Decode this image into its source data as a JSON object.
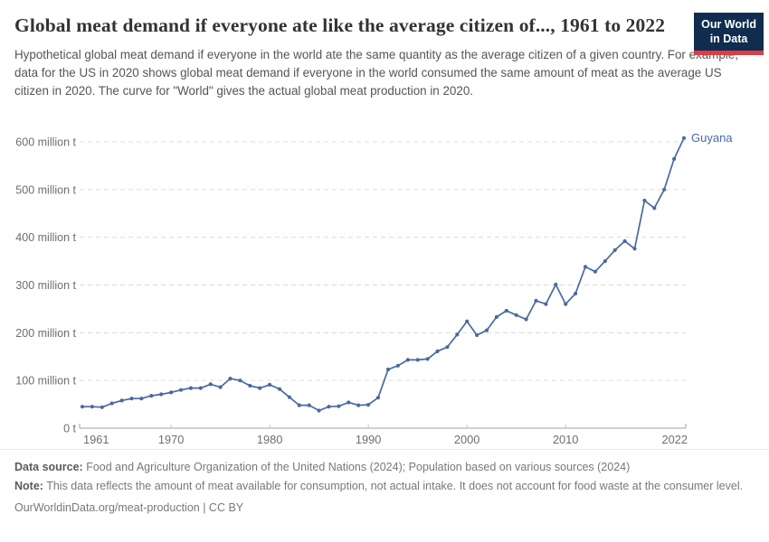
{
  "header": {
    "title": "Global meat demand if everyone ate like the average citizen of..., 1961 to 2022",
    "subtitle": "Hypothetical global meat demand if everyone in the world ate the same quantity as the average citizen of a given country. For example, data for the US in 2020 shows global meat demand if everyone in the world consumed the same amount of meat as the average US citizen in 2020. The curve for \"World\" gives the actual global meat production in 2020.",
    "logo": {
      "line1": "Our World",
      "line2": "in Data"
    }
  },
  "colors": {
    "logo_navy": "#102d4f",
    "logo_red": "#dc3d43",
    "line": "#4a69a2",
    "grid": "#dcdcdc",
    "axis": "#a1a1a1",
    "tick": "#c4c4c4",
    "text_muted": "#6e6e6e"
  },
  "chart_data": {
    "type": "line",
    "title": "Global meat demand if everyone ate like the average citizen of..., 1961 to 2022",
    "xlabel": "",
    "ylabel": "",
    "unit": "million t",
    "xlim": [
      1961,
      2022
    ],
    "ylim": [
      0,
      620
    ],
    "grid": "horizontal dashed",
    "legend_position": "end-of-line label",
    "xticks": [
      1961,
      1970,
      1980,
      1990,
      2000,
      2010,
      2022
    ],
    "yticks": [
      {
        "value": 0,
        "label": "0 t"
      },
      {
        "value": 100,
        "label": "100 million t"
      },
      {
        "value": 200,
        "label": "200 million t"
      },
      {
        "value": 300,
        "label": "300 million t"
      },
      {
        "value": 400,
        "label": "400 million t"
      },
      {
        "value": 500,
        "label": "500 million t"
      },
      {
        "value": 600,
        "label": "600 million t"
      }
    ],
    "x": [
      1961,
      1962,
      1963,
      1964,
      1965,
      1966,
      1967,
      1968,
      1969,
      1970,
      1971,
      1972,
      1973,
      1974,
      1975,
      1976,
      1977,
      1978,
      1979,
      1980,
      1981,
      1982,
      1983,
      1984,
      1985,
      1986,
      1987,
      1988,
      1989,
      1990,
      1991,
      1992,
      1993,
      1994,
      1995,
      1996,
      1997,
      1998,
      1999,
      2000,
      2001,
      2002,
      2003,
      2004,
      2005,
      2006,
      2007,
      2008,
      2009,
      2010,
      2011,
      2012,
      2013,
      2014,
      2015,
      2016,
      2017,
      2018,
      2019,
      2020,
      2021,
      2022
    ],
    "series": [
      {
        "name": "Guyana",
        "end_label": "Guyana",
        "color": "#4a69a2",
        "values": [
          45,
          45,
          44,
          52,
          58,
          62,
          62,
          68,
          71,
          75,
          80,
          84,
          84,
          92,
          86,
          104,
          100,
          89,
          84,
          91,
          82,
          65,
          48,
          48,
          37,
          45,
          46,
          54,
          48,
          49,
          64,
          123,
          131,
          143,
          143,
          145,
          161,
          170,
          196,
          224,
          195,
          205,
          233,
          246,
          237,
          228,
          267,
          260,
          301,
          260,
          282,
          338,
          328,
          350,
          373,
          392,
          376,
          477,
          461,
          500,
          564,
          608
        ]
      }
    ]
  },
  "footer": {
    "data_source_label": "Data source:",
    "data_source": "Food and Agriculture Organization of the United Nations (2024); Population based on various sources (2024)",
    "note_label": "Note:",
    "note": "This data reflects the amount of meat available for consumption, not actual intake. It does not account for food waste at the consumer level.",
    "link": "OurWorldinData.org/meat-production | CC BY"
  }
}
